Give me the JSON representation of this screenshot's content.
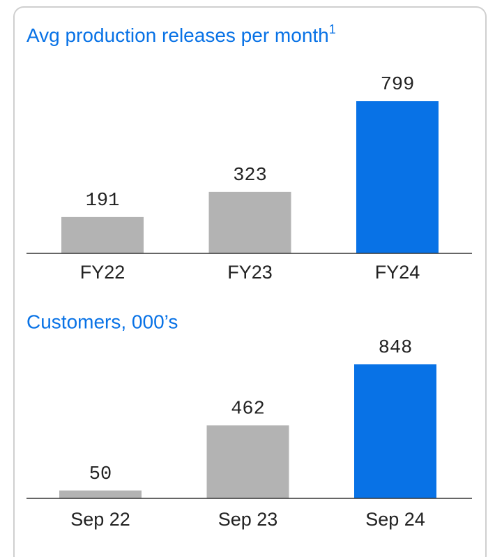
{
  "chart_data": [
    {
      "type": "bar",
      "title": "Avg production releases per month",
      "title_marker": "1",
      "categories": [
        "FY22",
        "FY23",
        "FY24"
      ],
      "values": [
        191,
        323,
        799
      ],
      "colors": [
        "#b3b3b3",
        "#b3b3b3",
        "#0872e6"
      ]
    },
    {
      "type": "bar",
      "title": "Customers, 000’s",
      "categories": [
        "Sep 22",
        "Sep 23",
        "Sep 24"
      ],
      "values": [
        50,
        462,
        848
      ],
      "colors": [
        "#b3b3b3",
        "#b3b3b3",
        "#0872e6"
      ]
    }
  ]
}
